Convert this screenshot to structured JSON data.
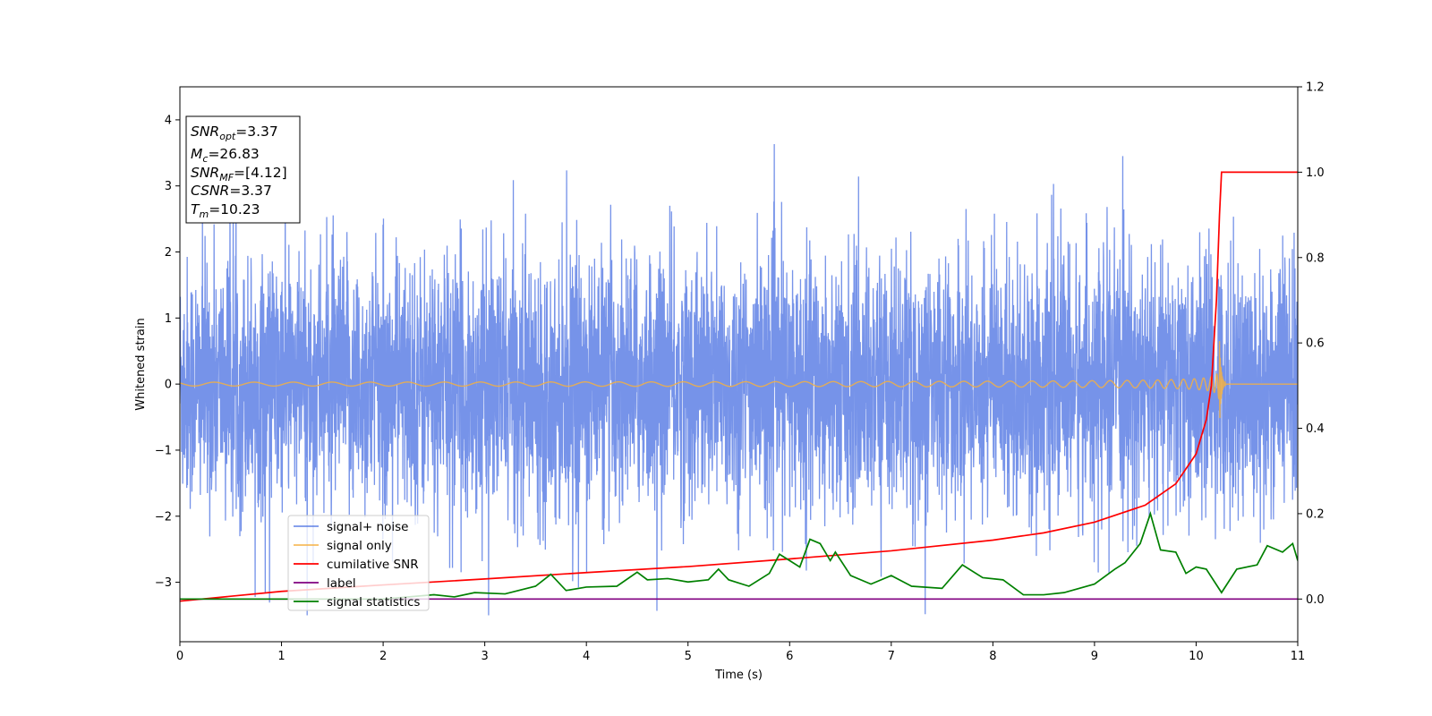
{
  "chart_data": {
    "type": "line",
    "xlabel": "Time (s)",
    "ylabel": "Whitened strain",
    "xlim": [
      0,
      11
    ],
    "ylim": [
      -3.9,
      4.5
    ],
    "y2lim": [
      -0.1,
      1.2
    ],
    "xticks": [
      "0",
      "1",
      "2",
      "3",
      "4",
      "5",
      "6",
      "7",
      "8",
      "9",
      "10",
      "11"
    ],
    "yticks": [
      {
        "v": -3,
        "label": "−3"
      },
      {
        "v": -2,
        "label": "−2"
      },
      {
        "v": -1,
        "label": "−1"
      },
      {
        "v": 0,
        "label": "0"
      },
      {
        "v": 1,
        "label": "1"
      },
      {
        "v": 2,
        "label": "2"
      },
      {
        "v": 3,
        "label": "3"
      },
      {
        "v": 4,
        "label": "4"
      }
    ],
    "y2ticks": [
      {
        "v": 0.0,
        "label": "0.0"
      },
      {
        "v": 0.2,
        "label": "0.2"
      },
      {
        "v": 0.4,
        "label": "0.4"
      },
      {
        "v": 0.6,
        "label": "0.6"
      },
      {
        "v": 0.8,
        "label": "0.8"
      },
      {
        "v": 1.0,
        "label": "1.0"
      },
      {
        "v": 1.2,
        "label": "1.2"
      }
    ],
    "grid": false,
    "legend_position": "lower-left",
    "series": [
      {
        "name": "signal+ noise",
        "color": "#4169e1",
        "axis": "left",
        "style": "noise"
      },
      {
        "name": "signal only",
        "color": "#f5b041",
        "axis": "left",
        "style": "chirp",
        "merger_time": 10.23
      },
      {
        "name": "cumilative SNR",
        "color": "#ff0000",
        "axis": "right",
        "style": "cumulative",
        "points": [
          [
            0,
            -0.005
          ],
          [
            1,
            0.018
          ],
          [
            2,
            0.033
          ],
          [
            3,
            0.047
          ],
          [
            4,
            0.062
          ],
          [
            5,
            0.076
          ],
          [
            6,
            0.094
          ],
          [
            7,
            0.113
          ],
          [
            8,
            0.138
          ],
          [
            8.5,
            0.155
          ],
          [
            9,
            0.18
          ],
          [
            9.5,
            0.22
          ],
          [
            9.8,
            0.27
          ],
          [
            10.0,
            0.34
          ],
          [
            10.1,
            0.42
          ],
          [
            10.15,
            0.5
          ],
          [
            10.2,
            0.7
          ],
          [
            10.23,
            0.9
          ],
          [
            10.25,
            1.0
          ],
          [
            11,
            1.0
          ]
        ]
      },
      {
        "name": "label",
        "color": "#800080",
        "axis": "right",
        "points": [
          [
            0,
            0
          ],
          [
            11,
            0
          ]
        ]
      },
      {
        "name": "signal statistics",
        "color": "#008000",
        "axis": "right",
        "points": [
          [
            0,
            0
          ],
          [
            1,
            0
          ],
          [
            2,
            0
          ],
          [
            2.5,
            0.01
          ],
          [
            2.7,
            0.005
          ],
          [
            2.9,
            0.015
          ],
          [
            3.2,
            0.012
          ],
          [
            3.5,
            0.03
          ],
          [
            3.65,
            0.058
          ],
          [
            3.8,
            0.02
          ],
          [
            4.0,
            0.028
          ],
          [
            4.3,
            0.03
          ],
          [
            4.5,
            0.063
          ],
          [
            4.6,
            0.045
          ],
          [
            4.8,
            0.048
          ],
          [
            5.0,
            0.04
          ],
          [
            5.2,
            0.045
          ],
          [
            5.3,
            0.07
          ],
          [
            5.4,
            0.045
          ],
          [
            5.6,
            0.03
          ],
          [
            5.8,
            0.06
          ],
          [
            5.9,
            0.105
          ],
          [
            6.0,
            0.09
          ],
          [
            6.1,
            0.075
          ],
          [
            6.2,
            0.14
          ],
          [
            6.3,
            0.13
          ],
          [
            6.4,
            0.09
          ],
          [
            6.45,
            0.11
          ],
          [
            6.6,
            0.055
          ],
          [
            6.8,
            0.035
          ],
          [
            7.0,
            0.055
          ],
          [
            7.2,
            0.03
          ],
          [
            7.5,
            0.025
          ],
          [
            7.7,
            0.08
          ],
          [
            7.9,
            0.05
          ],
          [
            8.1,
            0.045
          ],
          [
            8.3,
            0.01
          ],
          [
            8.5,
            0.01
          ],
          [
            8.7,
            0.015
          ],
          [
            9.0,
            0.035
          ],
          [
            9.2,
            0.07
          ],
          [
            9.3,
            0.085
          ],
          [
            9.45,
            0.13
          ],
          [
            9.55,
            0.2
          ],
          [
            9.65,
            0.115
          ],
          [
            9.8,
            0.11
          ],
          [
            9.9,
            0.06
          ],
          [
            10.0,
            0.075
          ],
          [
            10.1,
            0.07
          ],
          [
            10.25,
            0.015
          ],
          [
            10.4,
            0.07
          ],
          [
            10.6,
            0.08
          ],
          [
            10.7,
            0.125
          ],
          [
            10.85,
            0.11
          ],
          [
            10.95,
            0.13
          ],
          [
            11,
            0.09
          ]
        ]
      }
    ],
    "annotation": {
      "lines": [
        {
          "base": "SNR",
          "sub": "opt",
          "value": "=3.37"
        },
        {
          "base": "M",
          "sub": "c",
          "value": "=26.83"
        },
        {
          "base": "SNR",
          "sub": "MF",
          "value": "=[4.12]"
        },
        {
          "base": "CSNR",
          "sub": "",
          "value": "=3.37"
        },
        {
          "base": "T",
          "sub": "m",
          "value": "=10.23"
        }
      ]
    }
  }
}
